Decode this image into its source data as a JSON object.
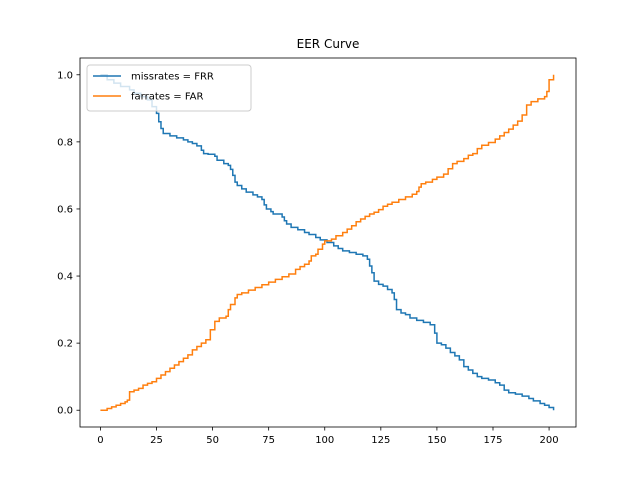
{
  "chart_data": {
    "type": "line",
    "title": "EER Curve",
    "xlabel": "",
    "ylabel": "",
    "xlim": [
      -9.1,
      212
    ],
    "ylim": [
      -0.05,
      1.05
    ],
    "xticks": [
      0,
      25,
      50,
      75,
      100,
      125,
      150,
      175,
      200
    ],
    "yticks": [
      0.0,
      0.2,
      0.4,
      0.6,
      0.8,
      1.0
    ],
    "grid": false,
    "legend_position": "top-left",
    "series": [
      {
        "name": "missrates = FRR",
        "color": "#1f77b4",
        "step": true,
        "points": [
          [
            0,
            1.0
          ],
          [
            3,
            0.985
          ],
          [
            6,
            0.975
          ],
          [
            9,
            0.965
          ],
          [
            13,
            0.955
          ],
          [
            15,
            0.945
          ],
          [
            18,
            0.935
          ],
          [
            21,
            0.925
          ],
          [
            23,
            0.905
          ],
          [
            25,
            0.885
          ],
          [
            26,
            0.86
          ],
          [
            27,
            0.84
          ],
          [
            28,
            0.825
          ],
          [
            31,
            0.818
          ],
          [
            34,
            0.812
          ],
          [
            37,
            0.806
          ],
          [
            39,
            0.8
          ],
          [
            41,
            0.795
          ],
          [
            43,
            0.788
          ],
          [
            45,
            0.775
          ],
          [
            46,
            0.765
          ],
          [
            48,
            0.763
          ],
          [
            51,
            0.757
          ],
          [
            52,
            0.745
          ],
          [
            55,
            0.735
          ],
          [
            57,
            0.73
          ],
          [
            58,
            0.718
          ],
          [
            59,
            0.7
          ],
          [
            60,
            0.68
          ],
          [
            61,
            0.67
          ],
          [
            63,
            0.66
          ],
          [
            65,
            0.65
          ],
          [
            68,
            0.642
          ],
          [
            70,
            0.636
          ],
          [
            72,
            0.628
          ],
          [
            73,
            0.612
          ],
          [
            74,
            0.6
          ],
          [
            76,
            0.592
          ],
          [
            77,
            0.585
          ],
          [
            81,
            0.576
          ],
          [
            82,
            0.565
          ],
          [
            83,
            0.555
          ],
          [
            85,
            0.545
          ],
          [
            88,
            0.538
          ],
          [
            91,
            0.53
          ],
          [
            93,
            0.524
          ],
          [
            96,
            0.515
          ],
          [
            98,
            0.508
          ],
          [
            101,
            0.5
          ],
          [
            104,
            0.49
          ],
          [
            106,
            0.482
          ],
          [
            108,
            0.475
          ],
          [
            111,
            0.47
          ],
          [
            114,
            0.465
          ],
          [
            117,
            0.46
          ],
          [
            119,
            0.45
          ],
          [
            120,
            0.43
          ],
          [
            121,
            0.41
          ],
          [
            122,
            0.385
          ],
          [
            124,
            0.375
          ],
          [
            126,
            0.37
          ],
          [
            128,
            0.36
          ],
          [
            130,
            0.35
          ],
          [
            131,
            0.33
          ],
          [
            132,
            0.3
          ],
          [
            134,
            0.29
          ],
          [
            136,
            0.285
          ],
          [
            138,
            0.275
          ],
          [
            141,
            0.268
          ],
          [
            144,
            0.262
          ],
          [
            147,
            0.255
          ],
          [
            149,
            0.23
          ],
          [
            150,
            0.2
          ],
          [
            152,
            0.195
          ],
          [
            154,
            0.185
          ],
          [
            156,
            0.172
          ],
          [
            158,
            0.162
          ],
          [
            160,
            0.15
          ],
          [
            162,
            0.13
          ],
          [
            164,
            0.12
          ],
          [
            166,
            0.11
          ],
          [
            168,
            0.1
          ],
          [
            170,
            0.095
          ],
          [
            173,
            0.09
          ],
          [
            176,
            0.082
          ],
          [
            178,
            0.075
          ],
          [
            180,
            0.06
          ],
          [
            182,
            0.052
          ],
          [
            185,
            0.048
          ],
          [
            188,
            0.042
          ],
          [
            191,
            0.035
          ],
          [
            193,
            0.028
          ],
          [
            196,
            0.02
          ],
          [
            198,
            0.015
          ],
          [
            200,
            0.008
          ],
          [
            202,
            0.0
          ]
        ]
      },
      {
        "name": "farrates = FAR",
        "color": "#ff7f0e",
        "step": true,
        "points": [
          [
            0,
            0.0
          ],
          [
            3,
            0.005
          ],
          [
            5,
            0.01
          ],
          [
            7,
            0.015
          ],
          [
            9,
            0.02
          ],
          [
            11,
            0.025
          ],
          [
            12,
            0.03
          ],
          [
            13,
            0.055
          ],
          [
            15,
            0.06
          ],
          [
            17,
            0.065
          ],
          [
            19,
            0.075
          ],
          [
            21,
            0.08
          ],
          [
            23,
            0.085
          ],
          [
            25,
            0.095
          ],
          [
            27,
            0.105
          ],
          [
            29,
            0.115
          ],
          [
            31,
            0.125
          ],
          [
            33,
            0.135
          ],
          [
            35,
            0.145
          ],
          [
            37,
            0.155
          ],
          [
            39,
            0.165
          ],
          [
            41,
            0.18
          ],
          [
            43,
            0.19
          ],
          [
            45,
            0.2
          ],
          [
            47,
            0.21
          ],
          [
            49,
            0.24
          ],
          [
            51,
            0.265
          ],
          [
            53,
            0.275
          ],
          [
            56,
            0.28
          ],
          [
            57,
            0.3
          ],
          [
            58,
            0.315
          ],
          [
            60,
            0.335
          ],
          [
            61,
            0.345
          ],
          [
            63,
            0.35
          ],
          [
            66,
            0.358
          ],
          [
            69,
            0.366
          ],
          [
            72,
            0.374
          ],
          [
            75,
            0.382
          ],
          [
            78,
            0.39
          ],
          [
            81,
            0.398
          ],
          [
            84,
            0.406
          ],
          [
            87,
            0.42
          ],
          [
            89,
            0.428
          ],
          [
            91,
            0.435
          ],
          [
            93,
            0.445
          ],
          [
            94,
            0.46
          ],
          [
            96,
            0.465
          ],
          [
            97,
            0.48
          ],
          [
            99,
            0.495
          ],
          [
            100,
            0.505
          ],
          [
            103,
            0.51
          ],
          [
            105,
            0.52
          ],
          [
            108,
            0.53
          ],
          [
            110,
            0.54
          ],
          [
            112,
            0.55
          ],
          [
            114,
            0.562
          ],
          [
            116,
            0.57
          ],
          [
            118,
            0.578
          ],
          [
            120,
            0.585
          ],
          [
            122,
            0.59
          ],
          [
            124,
            0.598
          ],
          [
            126,
            0.608
          ],
          [
            128,
            0.614
          ],
          [
            130,
            0.62
          ],
          [
            133,
            0.628
          ],
          [
            136,
            0.636
          ],
          [
            139,
            0.644
          ],
          [
            141,
            0.652
          ],
          [
            142,
            0.665
          ],
          [
            143,
            0.675
          ],
          [
            145,
            0.68
          ],
          [
            148,
            0.688
          ],
          [
            150,
            0.695
          ],
          [
            153,
            0.704
          ],
          [
            155,
            0.72
          ],
          [
            157,
            0.735
          ],
          [
            159,
            0.742
          ],
          [
            162,
            0.75
          ],
          [
            164,
            0.76
          ],
          [
            166,
            0.765
          ],
          [
            168,
            0.78
          ],
          [
            170,
            0.79
          ],
          [
            173,
            0.798
          ],
          [
            176,
            0.808
          ],
          [
            178,
            0.818
          ],
          [
            180,
            0.828
          ],
          [
            182,
            0.838
          ],
          [
            184,
            0.85
          ],
          [
            186,
            0.862
          ],
          [
            188,
            0.88
          ],
          [
            190,
            0.91
          ],
          [
            192,
            0.92
          ],
          [
            195,
            0.928
          ],
          [
            198,
            0.935
          ],
          [
            199,
            0.95
          ],
          [
            200,
            0.985
          ],
          [
            202,
            1.0
          ]
        ]
      }
    ]
  }
}
